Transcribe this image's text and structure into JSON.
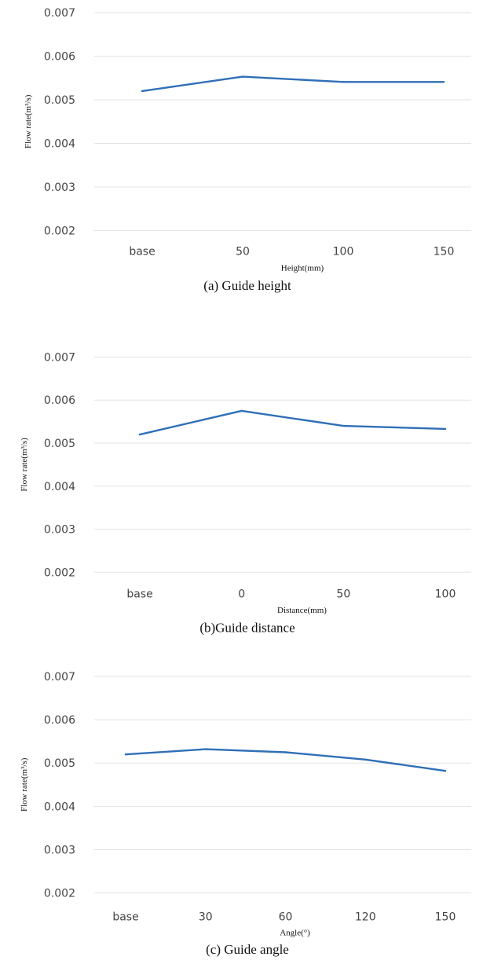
{
  "chart_data": [
    {
      "type": "line",
      "title": "",
      "caption": "(a)  Guide  height",
      "xlabel": "Height(mm)",
      "ylabel": "Flow rate(m³/s)",
      "categories": [
        "base",
        "50",
        "100",
        "150"
      ],
      "series": [
        {
          "values": [
            0.0052,
            0.00553,
            0.00541,
            0.00541
          ]
        }
      ],
      "ylim": [
        0.002,
        0.007
      ],
      "yticks": [
        "0.007",
        "0.006",
        "0.005",
        "0.004",
        "0.003",
        "0.002"
      ],
      "grid": true,
      "color": "#2f6fb7"
    },
    {
      "type": "line",
      "title": "",
      "caption": "(b)Guide  distance",
      "xlabel": "Distance(mm)",
      "ylabel": "Flow rate(m³/s)",
      "categories": [
        "base",
        "0",
        "50",
        "100"
      ],
      "series": [
        {
          "values": [
            0.0052,
            0.00575,
            0.0054,
            0.00533
          ]
        }
      ],
      "ylim": [
        0.002,
        0.007
      ],
      "yticks": [
        "0.007",
        "0.006",
        "0.005",
        "0.004",
        "0.003",
        "0.002"
      ],
      "grid": true,
      "color": "#2f6fb7"
    },
    {
      "type": "line",
      "title": "",
      "caption": "(c)  Guide  angle",
      "xlabel": "Angle(°)",
      "ylabel": "Flow rate(m³/s)",
      "categories": [
        "base",
        "30",
        "60",
        "120",
        "150"
      ],
      "series": [
        {
          "values": [
            0.0052,
            0.00532,
            0.00525,
            0.00508,
            0.00482
          ]
        }
      ],
      "ylim": [
        0.002,
        0.007
      ],
      "yticks": [
        "0.007",
        "0.006",
        "0.005",
        "0.004",
        "0.003",
        "0.002"
      ],
      "grid": true,
      "color": "#2f6fb7"
    }
  ]
}
